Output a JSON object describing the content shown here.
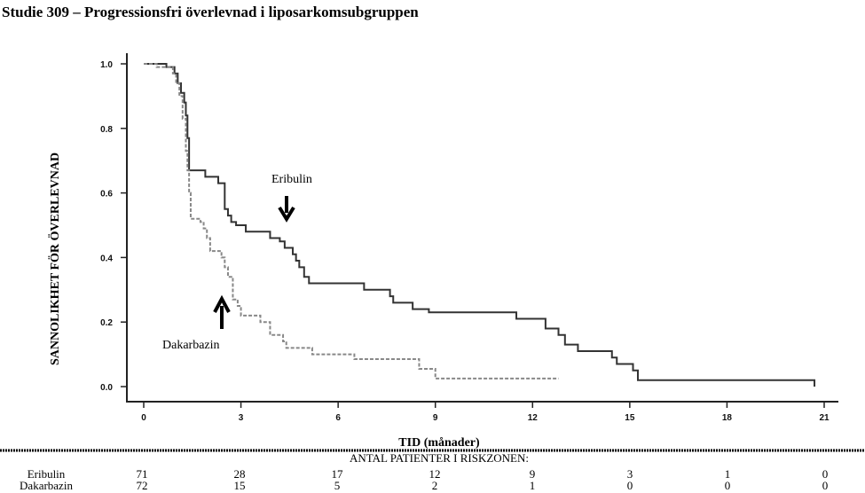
{
  "chart_data": {
    "type": "line",
    "subtype": "kaplan-meier",
    "title": "Studie 309 – Progressionsfri överlevnad i liposarkomsubgruppen",
    "xlabel": "TID (månader)",
    "ylabel": "SANNOLIKHET FÖR ÖVERLEVNAD",
    "xlim": [
      0,
      21
    ],
    "ylim": [
      0,
      1
    ],
    "xticks": [
      "0",
      "3",
      "6",
      "9",
      "12",
      "15",
      "18",
      "21"
    ],
    "yticks": [
      "0.0",
      "0.2",
      "0.4",
      "0.6",
      "0.8",
      "1.0"
    ],
    "grid": false,
    "series": [
      {
        "name": "Eribulin",
        "style": "solid",
        "color": "#333333",
        "steps": [
          [
            0,
            1.0
          ],
          [
            0.7,
            0.99
          ],
          [
            0.95,
            0.97
          ],
          [
            1.05,
            0.94
          ],
          [
            1.15,
            0.91
          ],
          [
            1.25,
            0.88
          ],
          [
            1.3,
            0.84
          ],
          [
            1.35,
            0.77
          ],
          [
            1.4,
            0.67
          ],
          [
            1.9,
            0.65
          ],
          [
            2.3,
            0.63
          ],
          [
            2.5,
            0.55
          ],
          [
            2.6,
            0.53
          ],
          [
            2.7,
            0.51
          ],
          [
            2.85,
            0.5
          ],
          [
            3.15,
            0.48
          ],
          [
            3.9,
            0.46
          ],
          [
            4.2,
            0.45
          ],
          [
            4.35,
            0.43
          ],
          [
            4.6,
            0.41
          ],
          [
            4.7,
            0.39
          ],
          [
            4.8,
            0.37
          ],
          [
            4.95,
            0.34
          ],
          [
            5.1,
            0.32
          ],
          [
            6.8,
            0.3
          ],
          [
            7.6,
            0.28
          ],
          [
            7.7,
            0.26
          ],
          [
            8.3,
            0.24
          ],
          [
            8.8,
            0.23
          ],
          [
            11.5,
            0.21
          ],
          [
            12.4,
            0.18
          ],
          [
            12.8,
            0.16
          ],
          [
            13.0,
            0.13
          ],
          [
            13.4,
            0.11
          ],
          [
            14.45,
            0.09
          ],
          [
            14.6,
            0.07
          ],
          [
            15.1,
            0.05
          ],
          [
            15.25,
            0.02
          ],
          [
            20.7,
            0.0
          ]
        ]
      },
      {
        "name": "Dakarbazin",
        "style": "dashed",
        "color": "#888888",
        "steps": [
          [
            0,
            1.0
          ],
          [
            0.4,
            0.99
          ],
          [
            0.9,
            0.97
          ],
          [
            1.0,
            0.94
          ],
          [
            1.1,
            0.9
          ],
          [
            1.2,
            0.83
          ],
          [
            1.3,
            0.73
          ],
          [
            1.35,
            0.67
          ],
          [
            1.4,
            0.6
          ],
          [
            1.45,
            0.52
          ],
          [
            1.75,
            0.51
          ],
          [
            1.85,
            0.49
          ],
          [
            1.95,
            0.46
          ],
          [
            2.05,
            0.42
          ],
          [
            2.4,
            0.4
          ],
          [
            2.5,
            0.37
          ],
          [
            2.6,
            0.34
          ],
          [
            2.75,
            0.27
          ],
          [
            2.9,
            0.25
          ],
          [
            3.0,
            0.22
          ],
          [
            3.6,
            0.2
          ],
          [
            3.9,
            0.16
          ],
          [
            4.3,
            0.14
          ],
          [
            4.4,
            0.12
          ],
          [
            5.2,
            0.1
          ],
          [
            6.5,
            0.085
          ],
          [
            8.5,
            0.055
          ],
          [
            9.0,
            0.025
          ],
          [
            12.8,
            0.025
          ]
        ]
      }
    ],
    "annotations": [
      {
        "text": "Eribulin",
        "arrow": "down"
      },
      {
        "text": "Dakarbazin",
        "arrow": "up"
      }
    ],
    "risk_table": {
      "title": "ANTAL PATIENTER I RISKZONEN:",
      "rows": [
        {
          "name": "Eribulin",
          "values": [
            "71",
            "28",
            "17",
            "12",
            "9",
            "3",
            "1",
            "0"
          ]
        },
        {
          "name": "Dakarbazin",
          "values": [
            "72",
            "15",
            "5",
            "2",
            "1",
            "0",
            "0",
            "0"
          ]
        }
      ]
    }
  }
}
